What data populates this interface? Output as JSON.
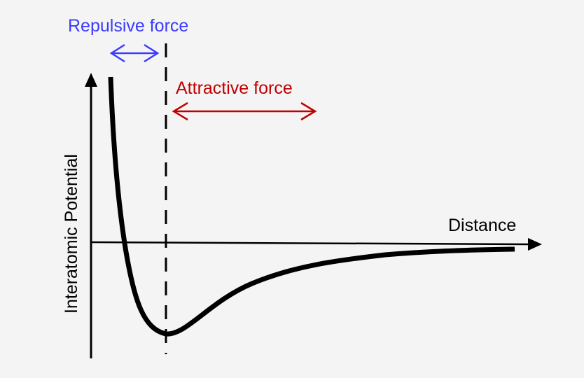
{
  "labels": {
    "repulsive": "Repulsive force",
    "attractive": "Attractive force",
    "x_axis": "Distance",
    "y_axis": "Interatomic Potential"
  },
  "colors": {
    "background": "#f4f4f4",
    "repulsive": "#3b3bff",
    "attractive": "#c00000",
    "curve": "#000000"
  }
}
